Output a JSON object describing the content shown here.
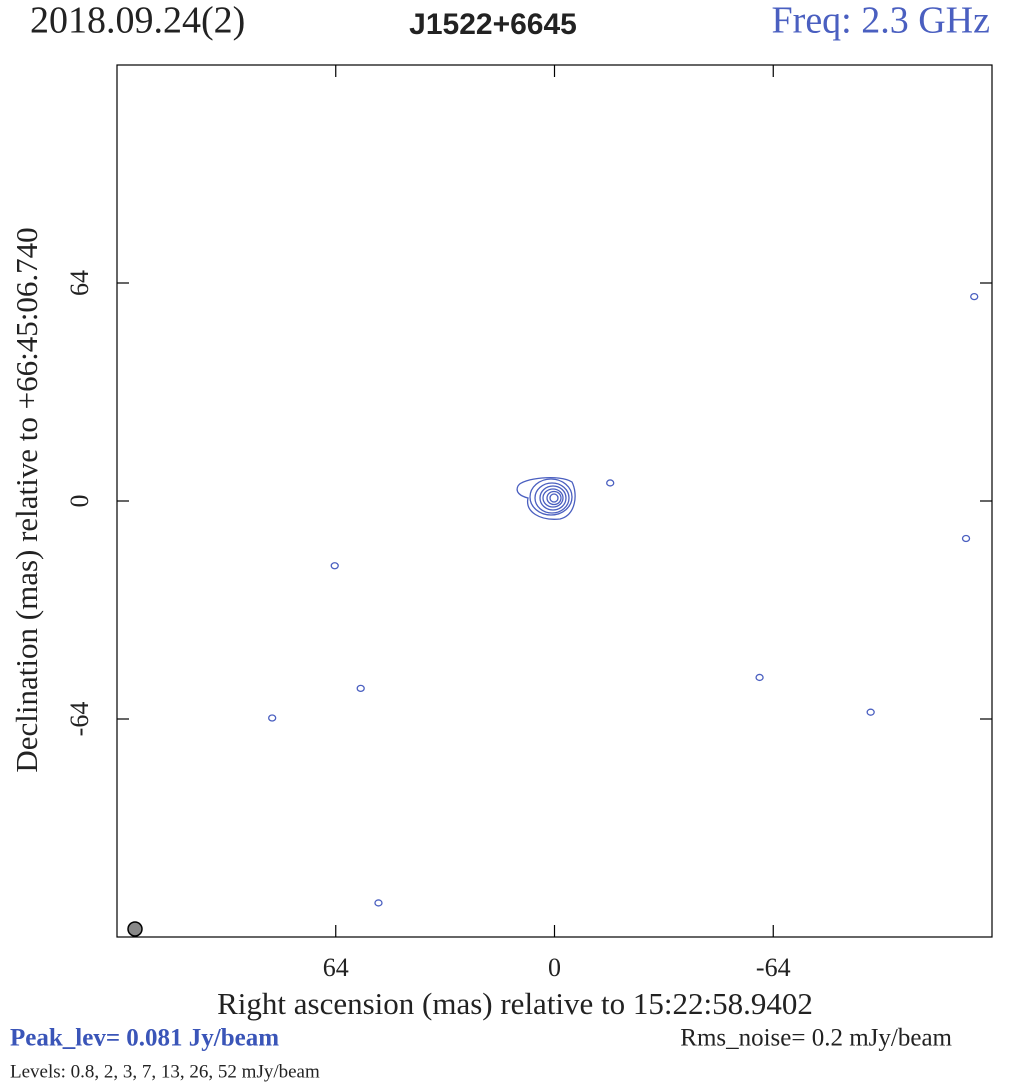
{
  "chart_data": {
    "type": "contour",
    "date_label": "2018.09.24(2)",
    "title": "J1522+6645",
    "freq_label": "Freq: 2.3 GHz",
    "x_label": "Right ascension (mas) relative to 15:22:58.9402",
    "y_label": "Declination (mas) relative to +66:45:06.740",
    "peak_label": "Peak_lev=  0.081 Jy/beam",
    "rms_label": "Rms_noise=  0.2 mJy/beam",
    "levels_label": "Levels: 0.8,   2,   3,   7,  13,  26,  52 mJy/beam",
    "color": "#4a5fc0",
    "xlim": [
      128,
      -128
    ],
    "ylim": [
      -128,
      128
    ],
    "xticks": [
      64,
      0,
      -64
    ],
    "yticks": [
      64,
      0,
      -64
    ],
    "x": [
      -16.3,
      -122.8,
      -120.4,
      64.3,
      56.7,
      82.6,
      -60,
      -92.5,
      51.5
    ],
    "y": [
      5.3,
      60,
      -11,
      -19,
      -55,
      -63.7,
      -51.8,
      -62,
      -118
    ]
  }
}
